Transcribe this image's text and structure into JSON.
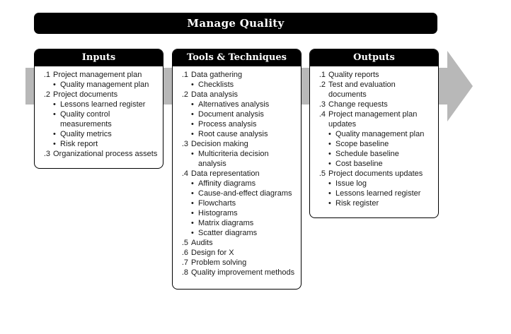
{
  "title": "Manage Quality",
  "colors": {
    "header_bg": "#000000",
    "arrow": "#b8b8b8",
    "panel_border": "#000000"
  },
  "inputs": {
    "heading": "Inputs",
    "items": [
      {
        "num": ".1",
        "label": "Project management plan",
        "subs": [
          "Quality management plan"
        ]
      },
      {
        "num": ".2",
        "label": "Project documents",
        "subs": [
          "Lessons learned register",
          "Quality control measurements",
          "Quality metrics",
          "Risk report"
        ]
      },
      {
        "num": ".3",
        "label": "Organizational process assets",
        "subs": []
      }
    ]
  },
  "tools": {
    "heading": "Tools & Techniques",
    "items": [
      {
        "num": ".1",
        "label": "Data gathering",
        "subs": [
          "Checklists"
        ]
      },
      {
        "num": ".2",
        "label": "Data analysis",
        "subs": [
          "Alternatives analysis",
          "Document analysis",
          "Process analysis",
          "Root cause analysis"
        ]
      },
      {
        "num": ".3",
        "label": "Decision making",
        "subs": [
          "Multicriteria decision analysis"
        ]
      },
      {
        "num": ".4",
        "label": "Data representation",
        "subs": [
          "Affinity diagrams",
          "Cause-and-effect diagrams",
          "Flowcharts",
          "Histograms",
          "Matrix diagrams",
          "Scatter diagrams"
        ]
      },
      {
        "num": ".5",
        "label": "Audits",
        "subs": []
      },
      {
        "num": ".6",
        "label": "Design for X",
        "subs": []
      },
      {
        "num": ".7",
        "label": "Problem solving",
        "subs": []
      },
      {
        "num": ".8",
        "label": "Quality improvement methods",
        "subs": []
      }
    ]
  },
  "outputs": {
    "heading": "Outputs",
    "items": [
      {
        "num": ".1",
        "label": "Quality reports",
        "subs": []
      },
      {
        "num": ".2",
        "label": "Test and evaluation documents",
        "subs": []
      },
      {
        "num": ".3",
        "label": "Change requests",
        "subs": []
      },
      {
        "num": ".4",
        "label": "Project management plan updates",
        "subs": [
          "Quality management plan",
          "Scope baseline",
          "Schedule baseline",
          "Cost baseline"
        ]
      },
      {
        "num": ".5",
        "label": "Project documents updates",
        "subs": [
          "Issue log",
          "Lessons learned register",
          "Risk register"
        ]
      }
    ]
  }
}
